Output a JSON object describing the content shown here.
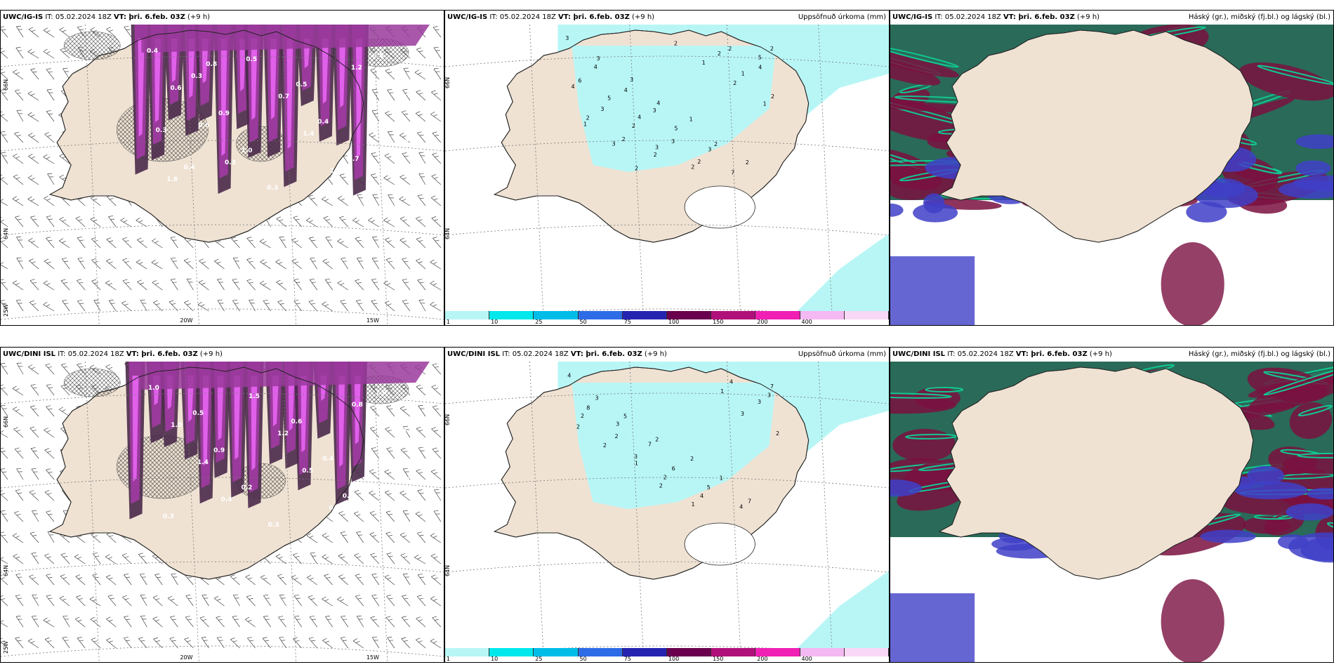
{
  "panels": [
    {
      "id": "a",
      "model": "UWC/IG-IS",
      "it": " IT: 05.02.2024 18Z ",
      "vt": "VT: þri. 6.feb. 03Z",
      "lead": " (+9 h)",
      "right": "",
      "lat_labels": [
        "66N",
        "64N",
        "25W"
      ],
      "lon_labels": [
        "20W",
        "15W"
      ]
    },
    {
      "id": "b",
      "model": "UWC/IG-IS",
      "it": " IT: 05.02.2024 18Z ",
      "vt": "VT: þri. 6.feb. 03Z",
      "lead": " (+9 h)",
      "right": "Uppsöfnuð úrkoma (mm)",
      "lat_labels": [
        "66N",
        "64N"
      ],
      "precip_labels": [
        "3",
        "3",
        "3",
        "4",
        "1",
        "2",
        "2",
        "2",
        "4",
        "4",
        "3",
        "5",
        "3",
        "7",
        "5",
        "6",
        "5",
        "4",
        "3",
        "2",
        "2",
        "4",
        "4",
        "3",
        "2",
        "3",
        "2",
        "2",
        "1",
        "2",
        "2",
        "2",
        "2",
        "2",
        "1",
        "2",
        "1",
        "1",
        "3",
        "2"
      ]
    },
    {
      "id": "c",
      "model": "UWC/IG-IS",
      "it": " IT: 05.02.2024 18Z ",
      "vt": "VT: þri. 6.feb. 03Z",
      "lead": " (+9 h)",
      "right": "Háský (gr.), miðský (fj.bl.) og lágský (bl.)"
    },
    {
      "id": "d",
      "model": "UWC/DINI ISL",
      "it": " IT: 05.02.2024 18Z ",
      "vt": "VT: þri. 6.feb. 03Z",
      "lead": " (+9 h)",
      "right": "",
      "lat_labels": [
        "66N",
        "64N",
        "25W"
      ],
      "lon_labels": [
        "20W",
        "15W"
      ]
    },
    {
      "id": "e",
      "model": "UWC/DINI ISL",
      "it": " IT: 05.02.2024 18Z ",
      "vt": "VT: þri. 6.feb. 03Z",
      "lead": " (+9 h)",
      "right": "Uppsöfnuð úrkoma (mm)",
      "lat_labels": [
        "66N",
        "64N"
      ],
      "precip_labels": [
        "4",
        "3",
        "5",
        "2",
        "2",
        "1",
        "7",
        "7",
        "8",
        "3",
        "7",
        "6",
        "5",
        "4",
        "3",
        "2",
        "2",
        "3",
        "2",
        "4",
        "4",
        "3",
        "2",
        "2",
        "1",
        "2",
        "1",
        "1",
        "3",
        "2"
      ]
    },
    {
      "id": "f",
      "model": "UWC/DINI ISL",
      "it": " IT: 05.02.2024 18Z ",
      "vt": "VT: þri. 6.feb. 03Z",
      "lead": " (+9 h)",
      "right": "Háský (gr.), miðský (fj.bl.) og lágský (bl.)"
    }
  ],
  "snow_labels_top": [
    "0.4",
    "0.6",
    "0.6",
    "0.3",
    "0.5",
    "0.7",
    "1.4",
    "1.0",
    "1.2",
    "0.8",
    "0.5",
    "1.6",
    "0.3",
    "0.9",
    "1.0",
    "0.3",
    "0.5",
    "0.4",
    "0.7",
    "0.5",
    "0.2",
    "0.3",
    "0.4",
    "0.8"
  ],
  "snow_labels_bot": [
    "1.0",
    "1.0",
    "1.4",
    "0.4",
    "1.5",
    "1.2",
    "0.5",
    "0.7",
    "0.8",
    "1.0",
    "0.6",
    "0.3",
    "0.5",
    "0.9",
    "0.2",
    "0.3",
    "0.6",
    "0.4",
    "0.7",
    "1.0",
    "0.3"
  ],
  "colorbar": {
    "ticks": [
      "1",
      "10",
      "25",
      "50",
      "75",
      "100",
      "150",
      "200",
      "400",
      ""
    ],
    "colors": [
      "#b8f6f6",
      "#00e8ec",
      "#00bde8",
      "#2d6ce6",
      "#2424b0",
      "#6a004e",
      "#b0107a",
      "#f020b4",
      "#f4b8f2"
    ]
  },
  "colors": {
    "land": "#efe2d3",
    "precip_light": "#b8f6f6",
    "snow_dark": "#4a2a4a",
    "snow_mid": "#9a3a9c",
    "snow_light": "#e060ea",
    "cloud_high": "#2a6a58",
    "cloud_high_edge": "#10c890",
    "cloud_mid": "#7a1040",
    "cloud_low": "#4040c8"
  }
}
